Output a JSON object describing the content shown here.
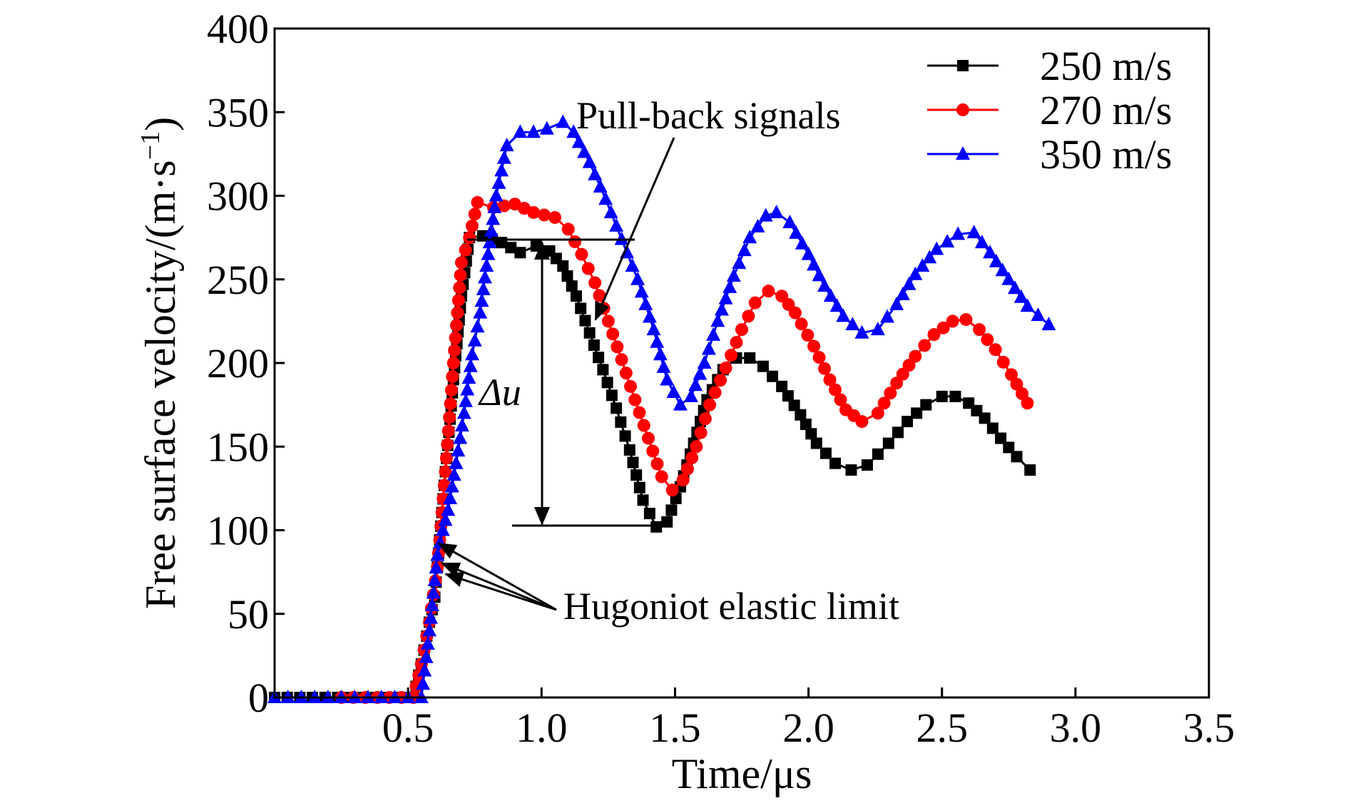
{
  "chart_data": {
    "type": "line",
    "title": "",
    "xlabel": "Time/μs",
    "ylabel": "Free surface velocity/(m·s",
    "ylabel_sup": "−1",
    "ylabel_end": ")",
    "xlim": [
      0,
      3.5
    ],
    "ylim": [
      0,
      400
    ],
    "xticks": [
      0.5,
      1.0,
      1.5,
      2.0,
      2.5,
      3.0,
      3.5
    ],
    "xtick_labels": [
      "0.5",
      "1.0",
      "1.5",
      "2.0",
      "2.5",
      "3.0",
      "3.5"
    ],
    "yticks": [
      0,
      50,
      100,
      150,
      200,
      250,
      300,
      350,
      400
    ],
    "ytick_labels": [
      "0",
      "50",
      "100",
      "150",
      "200",
      "250",
      "300",
      "350",
      "400"
    ],
    "grid": false,
    "legend_position": "top-right",
    "series": [
      {
        "name": "250 m/s",
        "color": "#000000",
        "marker": "square",
        "points": [
          [
            0,
            0
          ],
          [
            0.52,
            0
          ],
          [
            0.55,
            20
          ],
          [
            0.58,
            45
          ],
          [
            0.6,
            60
          ],
          [
            0.61,
            78
          ],
          [
            0.64,
            135
          ],
          [
            0.67,
            190
          ],
          [
            0.7,
            240
          ],
          [
            0.73,
            275
          ],
          [
            0.78,
            276
          ],
          [
            0.85,
            272
          ],
          [
            0.92,
            266
          ],
          [
            0.98,
            270
          ],
          [
            1.03,
            267
          ],
          [
            1.08,
            258
          ],
          [
            1.13,
            240
          ],
          [
            1.18,
            218
          ],
          [
            1.23,
            196
          ],
          [
            1.28,
            173
          ],
          [
            1.33,
            148
          ],
          [
            1.38,
            118
          ],
          [
            1.43,
            102
          ],
          [
            1.47,
            105
          ],
          [
            1.52,
            126
          ],
          [
            1.57,
            152
          ],
          [
            1.62,
            178
          ],
          [
            1.68,
            196
          ],
          [
            1.73,
            203
          ],
          [
            1.78,
            203
          ],
          [
            1.83,
            198
          ],
          [
            1.9,
            186
          ],
          [
            1.97,
            169
          ],
          [
            2.03,
            152
          ],
          [
            2.1,
            140
          ],
          [
            2.16,
            136
          ],
          [
            2.22,
            139
          ],
          [
            2.3,
            152
          ],
          [
            2.37,
            165
          ],
          [
            2.44,
            175
          ],
          [
            2.5,
            180
          ],
          [
            2.55,
            180
          ],
          [
            2.6,
            176
          ],
          [
            2.66,
            167
          ],
          [
            2.72,
            155
          ],
          [
            2.78,
            144
          ],
          [
            2.83,
            136
          ]
        ]
      },
      {
        "name": "270 m/s",
        "color": "#ff0000",
        "marker": "circle",
        "points": [
          [
            0.25,
            0
          ],
          [
            0.52,
            0
          ],
          [
            0.55,
            20
          ],
          [
            0.58,
            45
          ],
          [
            0.61,
            78
          ],
          [
            0.64,
            135
          ],
          [
            0.67,
            200
          ],
          [
            0.7,
            260
          ],
          [
            0.73,
            275
          ],
          [
            0.76,
            296
          ],
          [
            0.82,
            293
          ],
          [
            0.9,
            295
          ],
          [
            0.97,
            290
          ],
          [
            1.05,
            287
          ],
          [
            1.1,
            280
          ],
          [
            1.15,
            265
          ],
          [
            1.2,
            248
          ],
          [
            1.25,
            225
          ],
          [
            1.3,
            202
          ],
          [
            1.35,
            178
          ],
          [
            1.4,
            155
          ],
          [
            1.45,
            132
          ],
          [
            1.49,
            124
          ],
          [
            1.53,
            130
          ],
          [
            1.58,
            150
          ],
          [
            1.63,
            175
          ],
          [
            1.69,
            197
          ],
          [
            1.75,
            220
          ],
          [
            1.8,
            236
          ],
          [
            1.85,
            243
          ],
          [
            1.9,
            240
          ],
          [
            1.95,
            230
          ],
          [
            2.02,
            210
          ],
          [
            2.08,
            190
          ],
          [
            2.14,
            172
          ],
          [
            2.2,
            165
          ],
          [
            2.26,
            170
          ],
          [
            2.33,
            188
          ],
          [
            2.4,
            204
          ],
          [
            2.47,
            217
          ],
          [
            2.54,
            225
          ],
          [
            2.59,
            226
          ],
          [
            2.64,
            220
          ],
          [
            2.7,
            208
          ],
          [
            2.76,
            193
          ],
          [
            2.82,
            176
          ]
        ]
      },
      {
        "name": "350 m/s",
        "color": "#0000ff",
        "marker": "triangle",
        "points": [
          [
            0,
            0
          ],
          [
            0.55,
            0
          ],
          [
            0.58,
            40
          ],
          [
            0.61,
            85
          ],
          [
            0.63,
            100
          ],
          [
            0.65,
            112
          ],
          [
            0.68,
            140
          ],
          [
            0.71,
            170
          ],
          [
            0.74,
            205
          ],
          [
            0.77,
            230
          ],
          [
            0.8,
            265
          ],
          [
            0.83,
            300
          ],
          [
            0.87,
            330
          ],
          [
            0.92,
            338
          ],
          [
            0.97,
            338
          ],
          [
            1.02,
            340
          ],
          [
            1.08,
            344
          ],
          [
            1.12,
            338
          ],
          [
            1.18,
            320
          ],
          [
            1.24,
            298
          ],
          [
            1.3,
            274
          ],
          [
            1.36,
            250
          ],
          [
            1.42,
            220
          ],
          [
            1.47,
            190
          ],
          [
            1.52,
            175
          ],
          [
            1.56,
            180
          ],
          [
            1.61,
            200
          ],
          [
            1.66,
            225
          ],
          [
            1.72,
            252
          ],
          [
            1.78,
            275
          ],
          [
            1.84,
            288
          ],
          [
            1.88,
            290
          ],
          [
            1.93,
            284
          ],
          [
            2.0,
            265
          ],
          [
            2.06,
            246
          ],
          [
            2.13,
            228
          ],
          [
            2.2,
            218
          ],
          [
            2.26,
            220
          ],
          [
            2.33,
            235
          ],
          [
            2.4,
            253
          ],
          [
            2.48,
            268
          ],
          [
            2.56,
            277
          ],
          [
            2.62,
            278
          ],
          [
            2.68,
            266
          ],
          [
            2.75,
            250
          ],
          [
            2.82,
            234
          ],
          [
            2.9,
            223
          ]
        ]
      }
    ],
    "annotations": {
      "pullback": "Pull-back signals",
      "hugoniot": "Hugoniot elastic limit",
      "delta_u": "Δu"
    }
  }
}
